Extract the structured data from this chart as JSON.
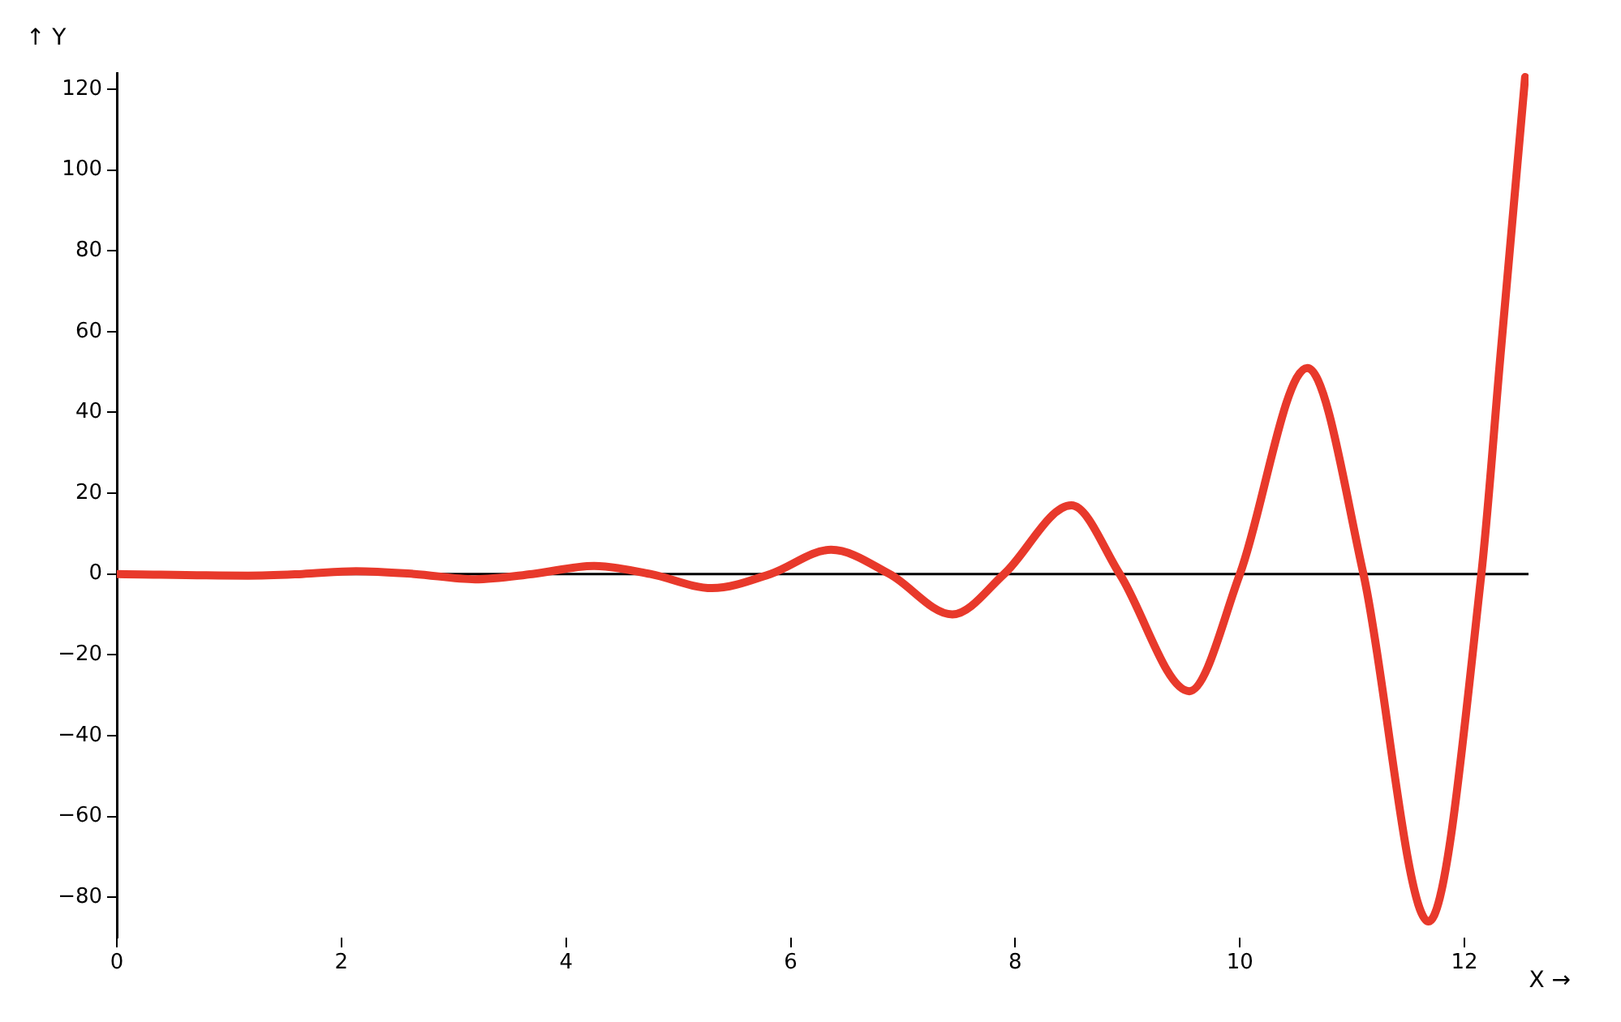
{
  "chart_data": {
    "type": "line",
    "xlabel": "X →",
    "ylabel": "↑ Y",
    "x": [
      0,
      1.17,
      1.65,
      2.13,
      2.65,
      3.19,
      3.7,
      4.25,
      4.75,
      5.3,
      5.82,
      6.36,
      6.88,
      7.44,
      7.9,
      8.5,
      8.93,
      9.55,
      10.0,
      10.6,
      11.1,
      11.68,
      12.15,
      12.32,
      12.54
    ],
    "series": [
      {
        "color": "#e8392b",
        "values": [
          0,
          -0.4,
          0,
          0.7,
          0,
          -1.3,
          0,
          2,
          0,
          -3.5,
          0,
          6,
          0,
          -10,
          0,
          17,
          0,
          -29,
          0,
          51,
          0,
          -86,
          0,
          54,
          123
        ]
      }
    ],
    "xlim": [
      0,
      12.57
    ],
    "ylim": [
      -90,
      124
    ],
    "xticks": [
      0,
      2,
      4,
      6,
      8,
      10,
      12
    ],
    "yticks": [
      {
        "value": -80,
        "label": "−80"
      },
      {
        "value": -60,
        "label": "−60"
      },
      {
        "value": -40,
        "label": "−40"
      },
      {
        "value": -20,
        "label": "−20"
      },
      0,
      20,
      40,
      60,
      80,
      100,
      120
    ],
    "ref_lines": [
      {
        "axis": "y",
        "value": 0,
        "color": "#000000"
      }
    ],
    "grid": false,
    "marker": "none",
    "line_style": "solid"
  }
}
